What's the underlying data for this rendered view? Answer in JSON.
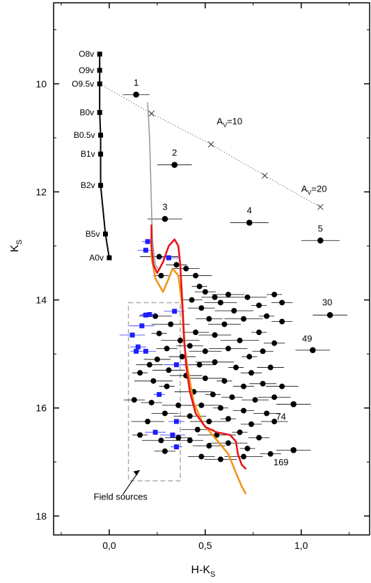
{
  "chart_data": {
    "type": "scatter",
    "xlabel": "H-K",
    "xlabel_sub": "S",
    "ylabel": "K",
    "ylabel_sub": "S",
    "xlim": [
      -0.29,
      1.36
    ],
    "ylim": [
      18.35,
      8.5
    ],
    "x_ticks": [
      0.0,
      0.5,
      1.0
    ],
    "x_tick_labels": [
      "0,0",
      "0,5",
      "1,0"
    ],
    "y_ticks": [
      10,
      12,
      14,
      16,
      18
    ],
    "y_tick_labels": [
      "10",
      "12",
      "14",
      "16",
      "18"
    ],
    "grid": false,
    "main_sequence": {
      "points": [
        {
          "label": "O8v",
          "x": -0.05,
          "y": 9.45
        },
        {
          "label": "O9v",
          "x": -0.05,
          "y": 9.75
        },
        {
          "label": "O9.5v",
          "x": -0.05,
          "y": 10.0
        },
        {
          "label": "B0v",
          "x": -0.05,
          "y": 10.53
        },
        {
          "label": "B0.5v",
          "x": -0.045,
          "y": 10.95
        },
        {
          "label": "B1v",
          "x": -0.045,
          "y": 11.3
        },
        {
          "label": "B2v",
          "x": -0.045,
          "y": 11.88
        },
        {
          "label": "B5v",
          "x": -0.02,
          "y": 12.78
        },
        {
          "label": "A0v",
          "x": 0.0,
          "y": 13.22
        }
      ]
    },
    "reddening_vector": {
      "points": [
        [
          -0.05,
          10.0
        ],
        [
          0.22,
          10.55
        ],
        [
          0.53,
          11.12
        ],
        [
          0.81,
          11.7
        ],
        [
          1.1,
          12.28
        ]
      ],
      "labels": [
        {
          "text": "A",
          "sub": "V",
          "tail": "=10",
          "x": 0.56,
          "y": 10.75
        },
        {
          "text": "A",
          "sub": "V",
          "tail": "=20",
          "x": 1.0,
          "y": 12.0
        }
      ]
    },
    "isochrones": [
      {
        "name": "gray",
        "color": "#9a9a9a",
        "points": [
          [
            0.2,
            10.35
          ],
          [
            0.21,
            11.0
          ],
          [
            0.215,
            11.6
          ],
          [
            0.22,
            12.3
          ],
          [
            0.225,
            12.9
          ],
          [
            0.24,
            13.35
          ],
          [
            0.26,
            13.45
          ],
          [
            0.28,
            13.3
          ]
        ]
      },
      {
        "name": "orange",
        "color": "#f39419",
        "points": [
          [
            0.22,
            12.9
          ],
          [
            0.22,
            13.2
          ],
          [
            0.24,
            13.6
          ],
          [
            0.28,
            13.85
          ],
          [
            0.31,
            13.6
          ],
          [
            0.33,
            13.42
          ],
          [
            0.36,
            13.55
          ],
          [
            0.38,
            14.1
          ],
          [
            0.39,
            14.8
          ],
          [
            0.41,
            15.3
          ],
          [
            0.44,
            15.9
          ],
          [
            0.49,
            16.3
          ],
          [
            0.55,
            16.55
          ],
          [
            0.62,
            16.85
          ],
          [
            0.66,
            17.2
          ],
          [
            0.69,
            17.45
          ],
          [
            0.71,
            17.58
          ]
        ]
      },
      {
        "name": "red",
        "color": "#e8141b",
        "points": [
          [
            0.22,
            12.62
          ],
          [
            0.22,
            13.0
          ],
          [
            0.23,
            13.35
          ],
          [
            0.25,
            13.5
          ],
          [
            0.28,
            13.3
          ],
          [
            0.31,
            13.0
          ],
          [
            0.34,
            12.88
          ],
          [
            0.36,
            13.0
          ],
          [
            0.37,
            13.35
          ],
          [
            0.38,
            14.0
          ],
          [
            0.39,
            14.7
          ],
          [
            0.4,
            15.2
          ],
          [
            0.42,
            15.7
          ],
          [
            0.45,
            16.1
          ],
          [
            0.5,
            16.35
          ],
          [
            0.56,
            16.45
          ],
          [
            0.63,
            16.5
          ],
          [
            0.66,
            16.62
          ],
          [
            0.67,
            16.85
          ],
          [
            0.69,
            17.05
          ],
          [
            0.71,
            17.12
          ]
        ]
      }
    ],
    "field_box": {
      "x0": 0.1,
      "x1": 0.37,
      "y0": 14.05,
      "y1": 17.35,
      "label": "Field sources"
    },
    "labeled_stars": [
      {
        "label": "1",
        "x": 0.14,
        "y": 10.2,
        "err": 0.07
      },
      {
        "label": "2",
        "x": 0.34,
        "y": 11.5,
        "err": 0.09
      },
      {
        "label": "3",
        "x": 0.29,
        "y": 12.5,
        "err": 0.09
      },
      {
        "label": "4",
        "x": 0.73,
        "y": 12.57,
        "err": 0.1
      },
      {
        "label": "5",
        "x": 1.1,
        "y": 12.9,
        "err": 0.1
      },
      {
        "label": "30",
        "x": 1.15,
        "y": 14.28,
        "err": 0.09
      },
      {
        "label": "49",
        "x": 1.06,
        "y": 14.93,
        "err": 0.09
      },
      {
        "label": "74",
        "x": 0.96,
        "y": 15.93,
        "err": 0.09
      },
      {
        "label": "169",
        "x": 0.96,
        "y": 16.78,
        "err": 0.09
      }
    ],
    "field_stars": [
      {
        "x": 0.2,
        "y": 12.92
      },
      {
        "x": 0.19,
        "y": 13.08
      },
      {
        "x": 0.31,
        "y": 13.22
      },
      {
        "x": 0.12,
        "y": 14.65
      },
      {
        "x": 0.14,
        "y": 14.95
      },
      {
        "x": 0.15,
        "y": 14.87
      },
      {
        "x": 0.19,
        "y": 14.95
      },
      {
        "x": 0.17,
        "y": 14.48
      },
      {
        "x": 0.19,
        "y": 14.28
      },
      {
        "x": 0.21,
        "y": 14.27
      },
      {
        "x": 0.34,
        "y": 14.21
      },
      {
        "x": 0.35,
        "y": 15.2
      },
      {
        "x": 0.26,
        "y": 15.75
      },
      {
        "x": 0.35,
        "y": 16.25
      },
      {
        "x": 0.24,
        "y": 16.45
      },
      {
        "x": 0.33,
        "y": 16.5
      },
      {
        "x": 0.35,
        "y": 16.72
      }
    ],
    "cluster_stars": [
      {
        "x": 0.27,
        "y": 13.55
      },
      {
        "x": 0.35,
        "y": 13.35
      },
      {
        "x": 0.4,
        "y": 13.42
      },
      {
        "x": 0.45,
        "y": 13.55
      },
      {
        "x": 0.26,
        "y": 13.2
      },
      {
        "x": 0.47,
        "y": 13.75
      },
      {
        "x": 0.5,
        "y": 13.85
      },
      {
        "x": 0.55,
        "y": 13.95
      },
      {
        "x": 0.62,
        "y": 13.9
      },
      {
        "x": 0.72,
        "y": 13.95
      },
      {
        "x": 0.86,
        "y": 13.9
      },
      {
        "x": 0.43,
        "y": 14.0
      },
      {
        "x": 0.48,
        "y": 14.15
      },
      {
        "x": 0.58,
        "y": 14.05
      },
      {
        "x": 0.65,
        "y": 14.2
      },
      {
        "x": 0.78,
        "y": 14.1
      },
      {
        "x": 0.9,
        "y": 14.05
      },
      {
        "x": 0.52,
        "y": 14.35
      },
      {
        "x": 0.6,
        "y": 14.45
      },
      {
        "x": 0.7,
        "y": 14.35
      },
      {
        "x": 0.82,
        "y": 14.3
      },
      {
        "x": 0.9,
        "y": 14.4
      },
      {
        "x": 0.45,
        "y": 14.6
      },
      {
        "x": 0.55,
        "y": 14.65
      },
      {
        "x": 0.68,
        "y": 14.75
      },
      {
        "x": 0.78,
        "y": 14.6
      },
      {
        "x": 0.86,
        "y": 14.8
      },
      {
        "x": 0.42,
        "y": 14.85
      },
      {
        "x": 0.5,
        "y": 14.95
      },
      {
        "x": 0.62,
        "y": 14.9
      },
      {
        "x": 0.73,
        "y": 15.05
      },
      {
        "x": 0.8,
        "y": 14.95
      },
      {
        "x": 0.38,
        "y": 15.05
      },
      {
        "x": 0.47,
        "y": 15.2
      },
      {
        "x": 0.55,
        "y": 15.15
      },
      {
        "x": 0.66,
        "y": 15.25
      },
      {
        "x": 0.74,
        "y": 15.35
      },
      {
        "x": 0.84,
        "y": 15.25
      },
      {
        "x": 0.4,
        "y": 15.4
      },
      {
        "x": 0.5,
        "y": 15.45
      },
      {
        "x": 0.6,
        "y": 15.5
      },
      {
        "x": 0.7,
        "y": 15.6
      },
      {
        "x": 0.8,
        "y": 15.55
      },
      {
        "x": 0.9,
        "y": 15.6
      },
      {
        "x": 0.44,
        "y": 15.7
      },
      {
        "x": 0.54,
        "y": 15.75
      },
      {
        "x": 0.64,
        "y": 15.8
      },
      {
        "x": 0.76,
        "y": 15.85
      },
      {
        "x": 0.86,
        "y": 15.8
      },
      {
        "x": 0.48,
        "y": 15.95
      },
      {
        "x": 0.58,
        "y": 16.0
      },
      {
        "x": 0.7,
        "y": 16.05
      },
      {
        "x": 0.82,
        "y": 16.1
      },
      {
        "x": 0.42,
        "y": 16.15
      },
      {
        "x": 0.52,
        "y": 16.25
      },
      {
        "x": 0.62,
        "y": 16.2
      },
      {
        "x": 0.74,
        "y": 16.3
      },
      {
        "x": 0.86,
        "y": 16.25
      },
      {
        "x": 0.46,
        "y": 16.4
      },
      {
        "x": 0.56,
        "y": 16.5
      },
      {
        "x": 0.68,
        "y": 16.45
      },
      {
        "x": 0.78,
        "y": 16.55
      },
      {
        "x": 0.42,
        "y": 16.6
      },
      {
        "x": 0.52,
        "y": 16.7
      },
      {
        "x": 0.62,
        "y": 16.65
      },
      {
        "x": 0.72,
        "y": 16.75
      },
      {
        "x": 0.84,
        "y": 16.85
      },
      {
        "x": 0.48,
        "y": 16.9
      },
      {
        "x": 0.58,
        "y": 16.95
      },
      {
        "x": 0.7,
        "y": 16.9
      },
      {
        "x": 0.26,
        "y": 14.62
      },
      {
        "x": 0.3,
        "y": 14.9
      },
      {
        "x": 0.25,
        "y": 15.1
      },
      {
        "x": 0.31,
        "y": 15.3
      },
      {
        "x": 0.23,
        "y": 15.5
      },
      {
        "x": 0.3,
        "y": 15.6
      },
      {
        "x": 0.22,
        "y": 15.9
      },
      {
        "x": 0.29,
        "y": 16.1
      },
      {
        "x": 0.2,
        "y": 16.25
      },
      {
        "x": 0.27,
        "y": 16.6
      },
      {
        "x": 0.16,
        "y": 16.5
      },
      {
        "x": 0.29,
        "y": 16.8
      },
      {
        "x": 0.36,
        "y": 16.55
      },
      {
        "x": 0.24,
        "y": 14.3
      },
      {
        "x": 0.32,
        "y": 14.45
      },
      {
        "x": 0.16,
        "y": 15.35
      },
      {
        "x": 0.13,
        "y": 15.85
      },
      {
        "x": 0.21,
        "y": 15.2
      },
      {
        "x": 0.36,
        "y": 15.95
      },
      {
        "x": 0.37,
        "y": 14.75
      }
    ]
  }
}
